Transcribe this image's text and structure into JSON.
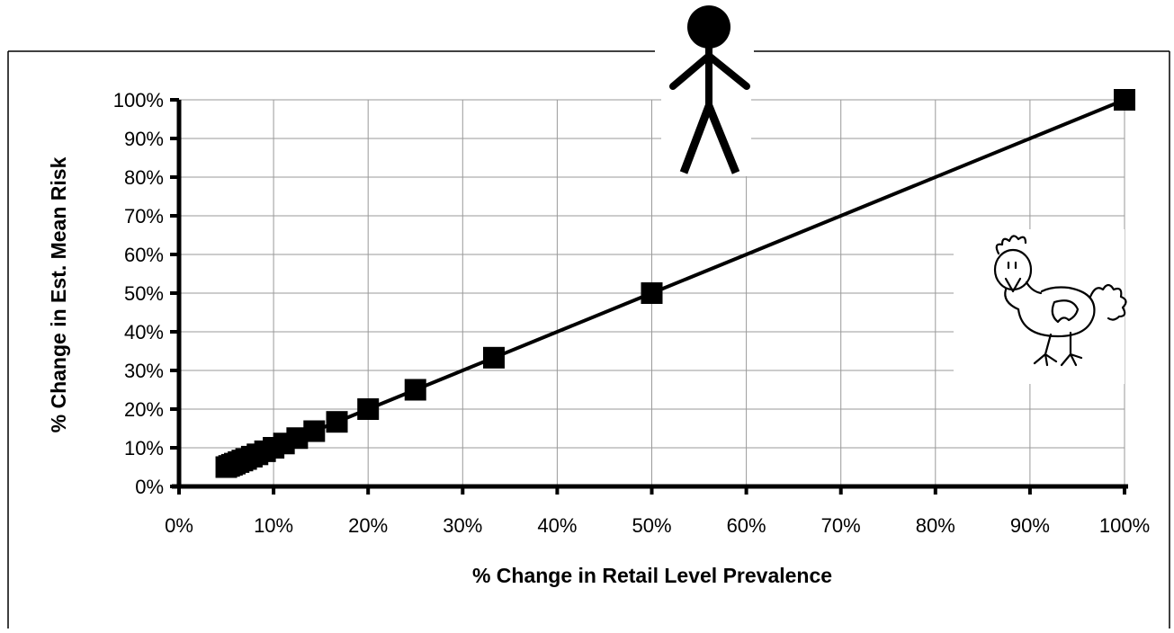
{
  "chart_data": {
    "type": "line",
    "xlabel": "% Change in Retail Level Prevalence",
    "ylabel": "% Change in Est. Mean Risk",
    "xlim": [
      0,
      100
    ],
    "ylim": [
      0,
      100
    ],
    "x_ticks": [
      "0%",
      "10%",
      "20%",
      "30%",
      "40%",
      "50%",
      "60%",
      "70%",
      "80%",
      "90%",
      "100%"
    ],
    "y_ticks": [
      "0%",
      "10%",
      "20%",
      "30%",
      "40%",
      "50%",
      "60%",
      "70%",
      "80%",
      "90%",
      "100%"
    ],
    "grid": true,
    "legend": "none",
    "marker": "square",
    "series": [
      {
        "x": [
          5.0,
          5.3,
          5.6,
          5.9,
          6.3,
          6.7,
          7.1,
          7.7,
          8.3,
          9.1,
          10.0,
          11.1,
          12.5,
          14.3,
          16.7,
          20.0,
          25.0,
          33.3,
          50.0,
          100.0
        ],
        "y": [
          5.0,
          5.3,
          5.6,
          5.9,
          6.3,
          6.7,
          7.1,
          7.7,
          8.3,
          9.1,
          10.0,
          11.1,
          12.5,
          14.3,
          16.7,
          20.0,
          25.0,
          33.3,
          50.0,
          100.0
        ]
      }
    ],
    "illustrations": [
      "stick-figure-person",
      "chicken-drawing"
    ]
  }
}
